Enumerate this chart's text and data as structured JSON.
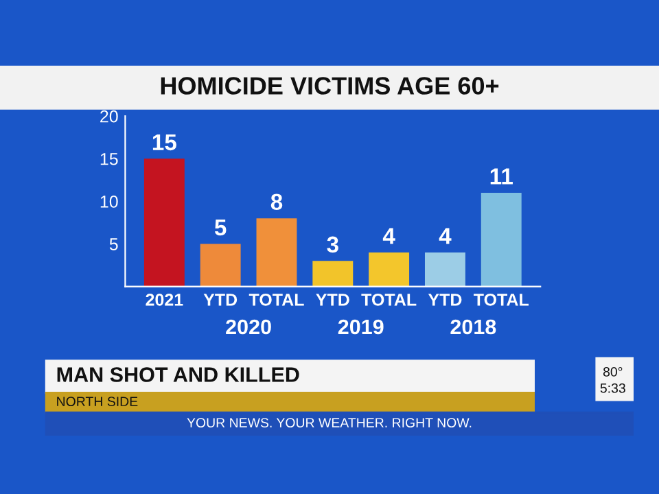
{
  "chart_data": {
    "type": "bar",
    "title": "HOMICIDE VICTIMS AGE 60+",
    "categories": [
      "2021",
      "YTD",
      "TOTAL",
      "YTD",
      "TOTAL",
      "YTD",
      "TOTAL"
    ],
    "values": [
      15,
      5,
      8,
      3,
      4,
      4,
      11
    ],
    "colors": [
      "#c41420",
      "#ee8a3a",
      "#f0903a",
      "#f2c42a",
      "#f3c62c",
      "#9ccde6",
      "#7fbfe0"
    ],
    "ylim": [
      0,
      20
    ],
    "yticks": [
      5,
      10,
      15,
      20
    ],
    "grid": false,
    "data_labels": true,
    "annotations": [
      "2020",
      "2019",
      "2018",
      "MAN SHOT AND KILLED",
      "NORTH SIDE",
      "YOUR NEWS. YOUR WEATHER. RIGHT NOW.",
      "80°",
      "5:33"
    ]
  }
}
